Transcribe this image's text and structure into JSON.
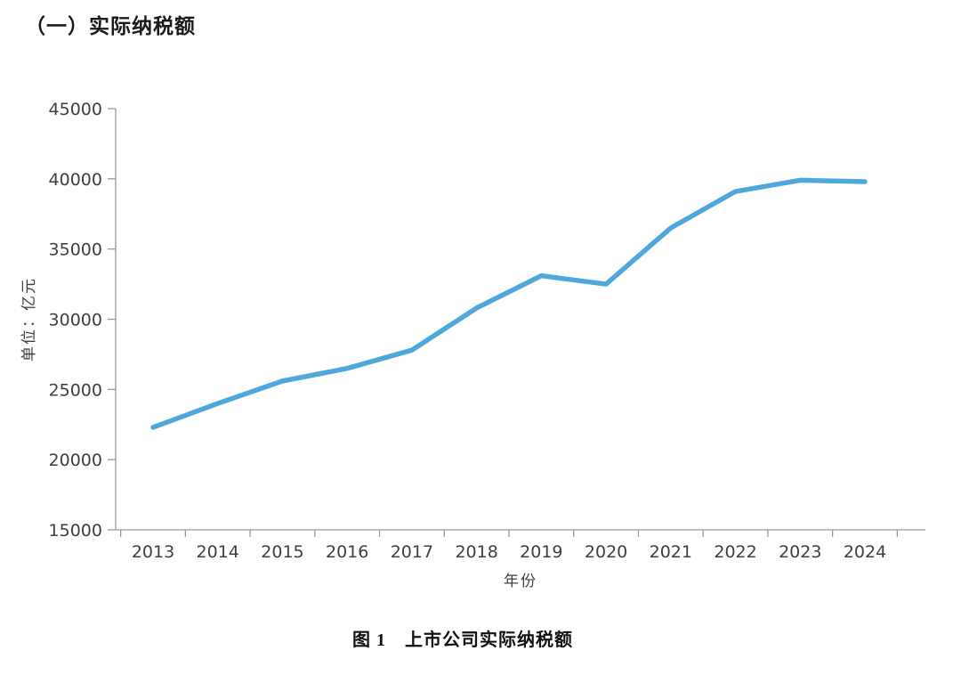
{
  "page": {
    "heading": "（一）实际纳税额",
    "caption": "图 1　上市公司实际纳税额"
  },
  "chart_data": {
    "type": "line",
    "title": "图 1 上市公司实际纳税额",
    "categories": [
      "2013",
      "2014",
      "2015",
      "2016",
      "2017",
      "2018",
      "2019",
      "2020",
      "2021",
      "2022",
      "2023",
      "2024"
    ],
    "values": [
      22300,
      24000,
      25600,
      26500,
      27800,
      30800,
      33100,
      32500,
      36500,
      39100,
      39900,
      39800
    ],
    "xlabel": "年份",
    "ylabel": "单位：亿元",
    "ylim": [
      15000,
      45000
    ],
    "ytick_step": 5000,
    "yticks": [
      "15000",
      "20000",
      "25000",
      "30000",
      "35000",
      "40000",
      "45000"
    ],
    "grid": false,
    "legend": "none",
    "line_color": "#4FA8DC",
    "axis_color": "#9a9a9a",
    "tick_label_color": "#3f3f3f"
  }
}
